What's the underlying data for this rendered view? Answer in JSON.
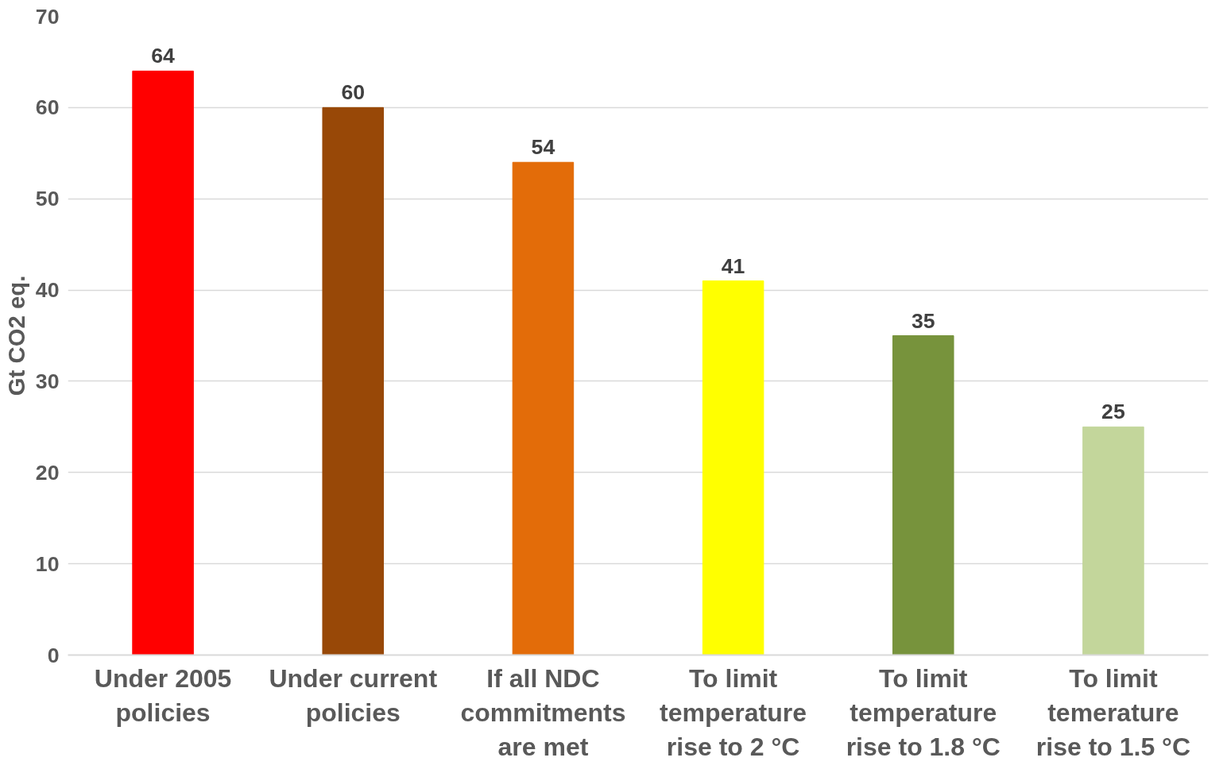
{
  "chart_data": {
    "type": "bar",
    "ylabel": "Gt CO2 eq.",
    "categories": [
      "Under 2005 policies",
      "Under current policies",
      "If all NDC commitments are met",
      "To limit temperature rise to 2 °C",
      "To limit temperature rise to 1.8 °C",
      "To limit temerature rise to 1.5 °C"
    ],
    "values": [
      64,
      60,
      54,
      41,
      35,
      25
    ],
    "colors": [
      "#ff0000",
      "#984807",
      "#e36c09",
      "#ffff00",
      "#77933c",
      "#c3d69b"
    ],
    "ylim": [
      0,
      70
    ],
    "yticks": [
      0,
      10,
      20,
      30,
      40,
      50,
      60,
      70
    ],
    "grid": "y",
    "data_labels": true
  }
}
